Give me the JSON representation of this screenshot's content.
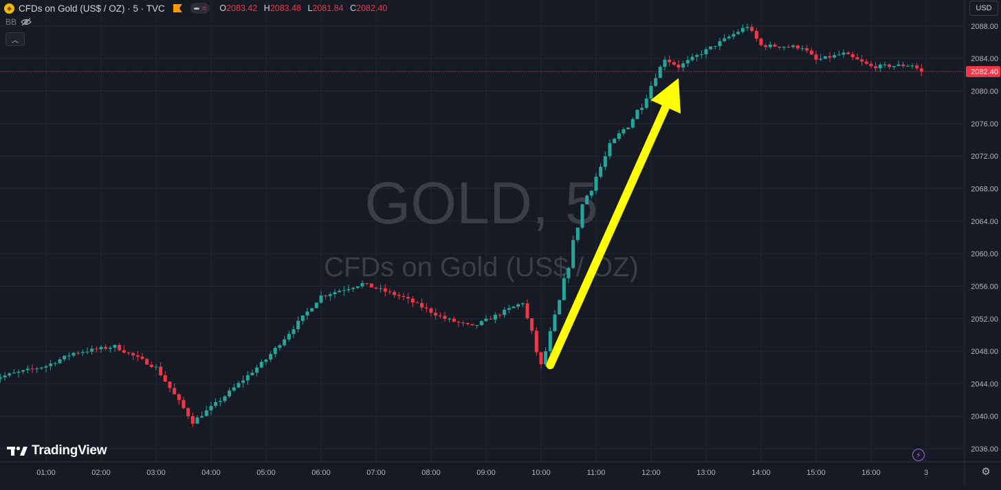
{
  "header": {
    "symbol_title": "CFDs on Gold (US$ / OZ) · 5 · TVC",
    "ohlc": {
      "o_label": "O",
      "o": "2083.42",
      "h_label": "H",
      "h": "2083.48",
      "l_label": "L",
      "l": "2081.84",
      "c_label": "C",
      "c": "2082.40"
    },
    "indicator": "BB",
    "currency": "USD"
  },
  "watermark": {
    "symbol": "GOLD, 5",
    "description": "CFDs on Gold (US$ / OZ)"
  },
  "branding": {
    "logo_text": "TradingView"
  },
  "colors": {
    "background": "#161a25",
    "up": "#26a69a",
    "down": "#f23645",
    "grid": "#232632",
    "arrow": "#ffff00",
    "price_line": "#f23645"
  },
  "icons": [
    "coin-logo-icon",
    "flag-icon",
    "eye-hidden-icon",
    "chevron-up-icon",
    "flash-icon",
    "settings-icon"
  ],
  "chart_data": {
    "type": "candlestick",
    "title": "CFDs on Gold (US$ / OZ) · 5 · TVC",
    "interval": "5 min",
    "ylim": [
      2034.4,
      2091.2
    ],
    "y_ticks": [
      2036,
      2040,
      2044,
      2048,
      2052,
      2056,
      2060,
      2064,
      2068,
      2072,
      2076,
      2080,
      2084,
      2088
    ],
    "y_tick_labels": [
      "2036.00",
      "2040.00",
      "2044.00",
      "2048.00",
      "2052.00",
      "2056.00",
      "2060.00",
      "2064.00",
      "2068.00",
      "2072.00",
      "2076.00",
      "2080.00",
      "2084.00",
      "2088.00"
    ],
    "x_tick_labels": [
      "01:00",
      "02:00",
      "03:00",
      "04:00",
      "05:00",
      "06:00",
      "07:00",
      "08:00",
      "09:00",
      "10:00",
      "11:00",
      "12:00",
      "13:00",
      "14:00",
      "15:00",
      "16:00",
      "3"
    ],
    "last_price": 2082.4,
    "last_price_label": "2082.40",
    "annotation": {
      "type": "arrow",
      "color": "#ffff00",
      "from": [
        "10:10",
        2046.3
      ],
      "to": [
        "12:30",
        2081.6
      ]
    },
    "key_points": [
      {
        "time": "00:00",
        "price": 2044.6
      },
      {
        "time": "01:00",
        "price": 2046.2
      },
      {
        "time": "01:30",
        "price": 2047.8
      },
      {
        "time": "02:15",
        "price": 2048.6
      },
      {
        "time": "03:00",
        "price": 2046.0
      },
      {
        "time": "03:40",
        "price": 2039.3
      },
      {
        "time": "04:10",
        "price": 2042.0
      },
      {
        "time": "05:00",
        "price": 2047.0
      },
      {
        "time": "06:00",
        "price": 2054.8
      },
      {
        "time": "06:45",
        "price": 2056.3
      },
      {
        "time": "07:30",
        "price": 2054.6
      },
      {
        "time": "08:15",
        "price": 2052.0
      },
      {
        "time": "08:45",
        "price": 2051.0
      },
      {
        "time": "09:00",
        "price": 2051.8
      },
      {
        "time": "09:40",
        "price": 2054.0
      },
      {
        "time": "09:55",
        "price": 2048.0
      },
      {
        "time": "10:00",
        "price": 2046.0
      },
      {
        "time": "10:20",
        "price": 2054.0
      },
      {
        "time": "10:45",
        "price": 2066.0
      },
      {
        "time": "11:15",
        "price": 2073.0
      },
      {
        "time": "11:45",
        "price": 2077.5
      },
      {
        "time": "12:15",
        "price": 2084.0
      },
      {
        "time": "12:30",
        "price": 2083.0
      },
      {
        "time": "13:00",
        "price": 2085.0
      },
      {
        "time": "13:30",
        "price": 2087.0
      },
      {
        "time": "13:45",
        "price": 2088.0
      },
      {
        "time": "14:00",
        "price": 2085.6
      },
      {
        "time": "14:45",
        "price": 2085.4
      },
      {
        "time": "15:00",
        "price": 2083.8
      },
      {
        "time": "15:30",
        "price": 2084.6
      },
      {
        "time": "16:00",
        "price": 2083.0
      },
      {
        "time": "16:45",
        "price": 2083.2
      },
      {
        "time": "16:55",
        "price": 2082.4
      }
    ]
  }
}
